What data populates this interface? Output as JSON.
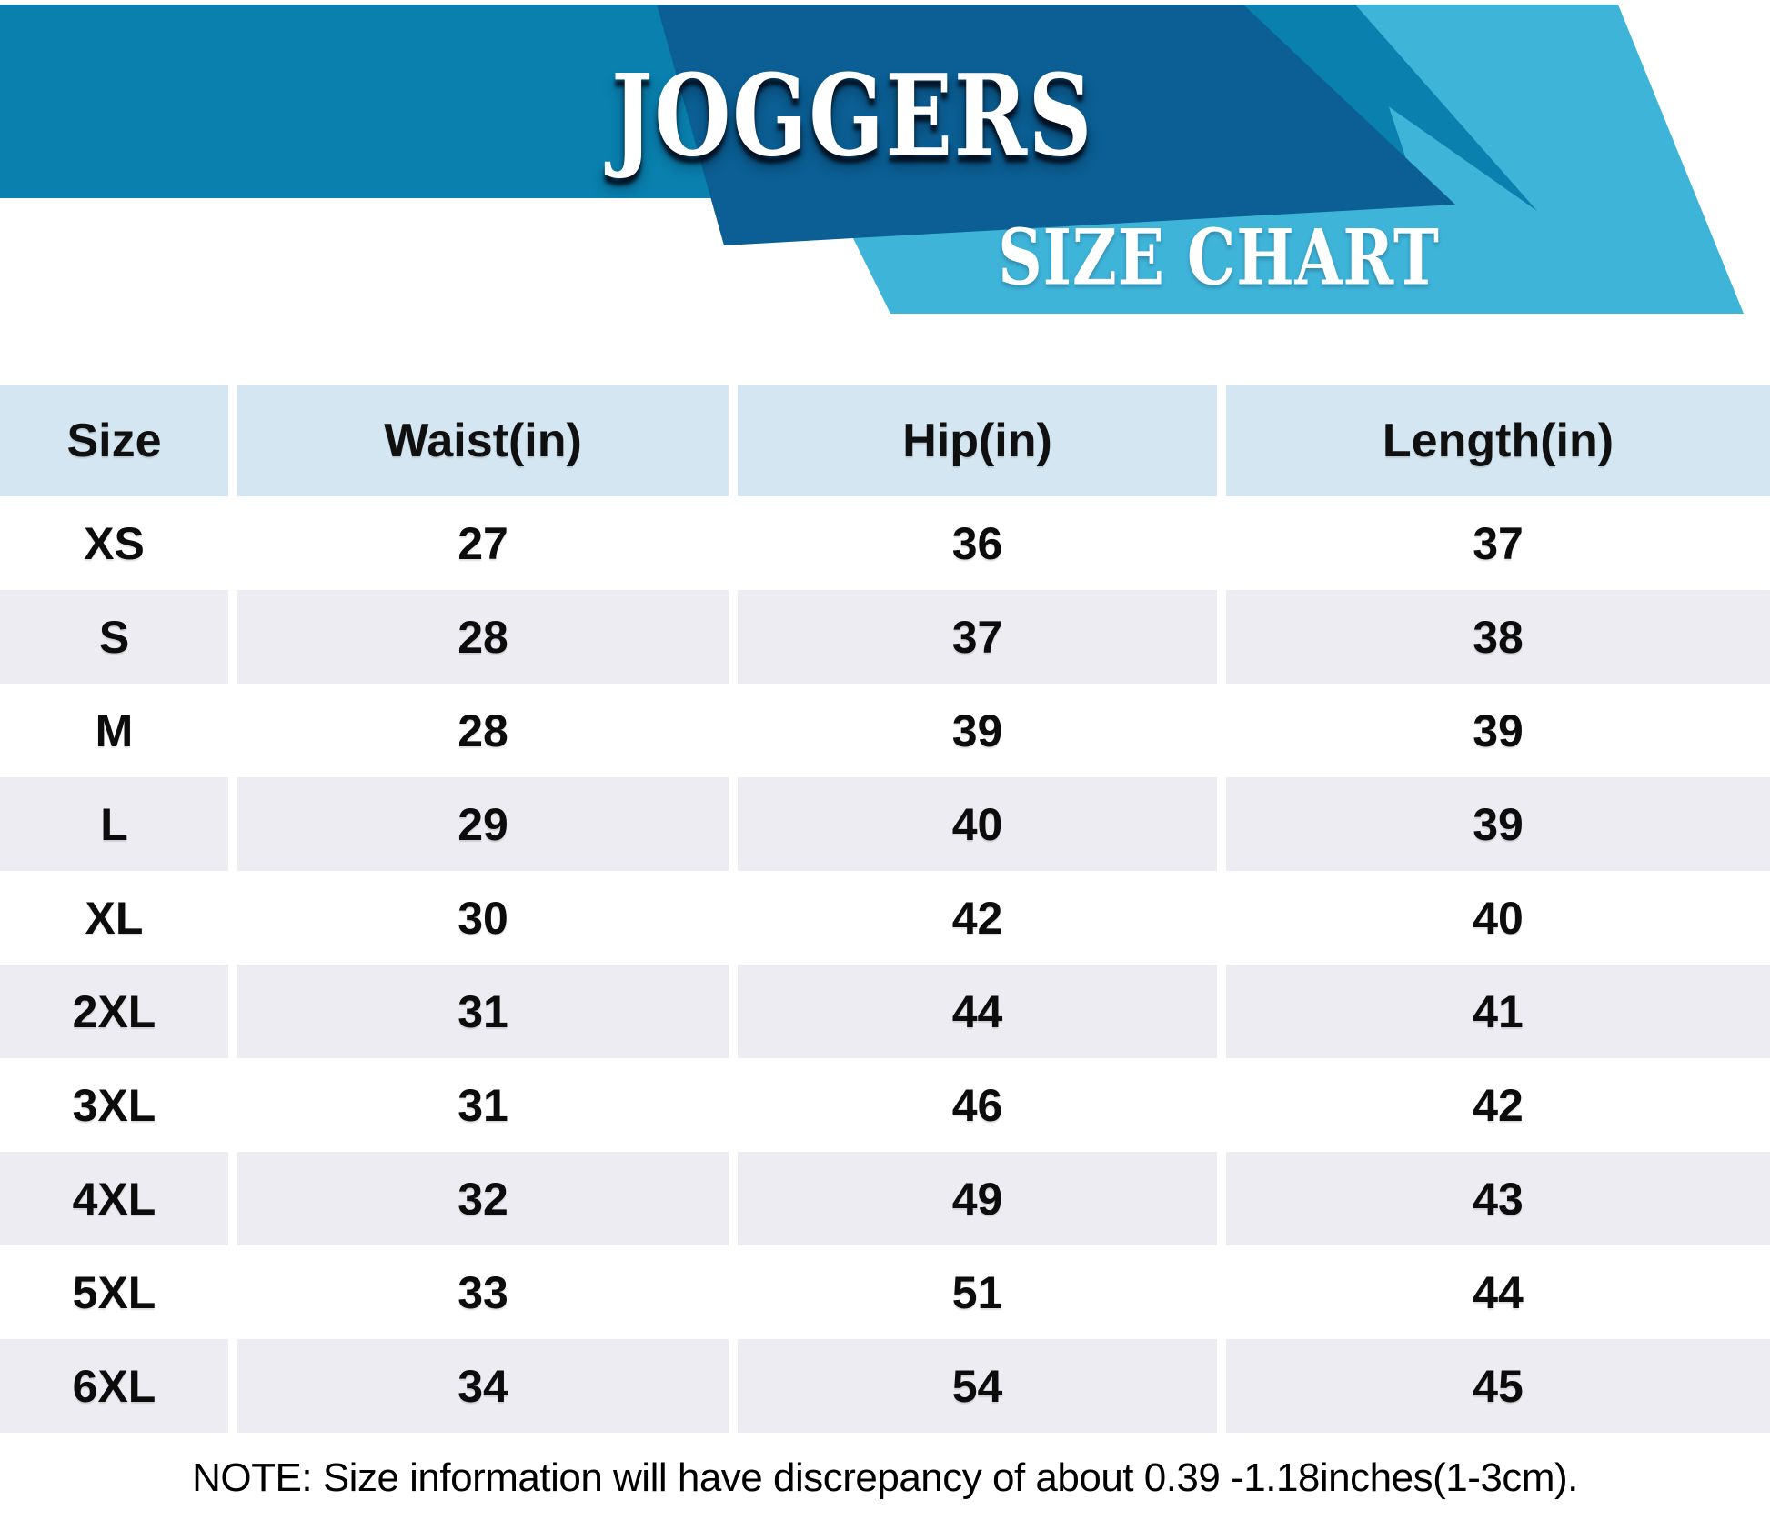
{
  "header": {
    "title": "JOGGERS",
    "subtitle": "SIZE CHART"
  },
  "colors": {
    "medium_blue": "#0980AE",
    "dark_blue": "#0B5F94",
    "light_blue": "#3EB4D9",
    "header_cell": "#D3E6F1",
    "row_alt": "#ECECF2",
    "row_base": "#FFFFFF",
    "text": "#0C0C0C"
  },
  "table": {
    "columns": [
      "Size",
      "Waist(in)",
      "Hip(in)",
      "Length(in)"
    ],
    "rows": [
      {
        "size": "XS",
        "waist": "27",
        "hip": "36",
        "length": "37"
      },
      {
        "size": "S",
        "waist": "28",
        "hip": "37",
        "length": "38"
      },
      {
        "size": "M",
        "waist": "28",
        "hip": "39",
        "length": "39"
      },
      {
        "size": "L",
        "waist": "29",
        "hip": "40",
        "length": "39"
      },
      {
        "size": "XL",
        "waist": "30",
        "hip": "42",
        "length": "40"
      },
      {
        "size": "2XL",
        "waist": "31",
        "hip": "44",
        "length": "41"
      },
      {
        "size": "3XL",
        "waist": "31",
        "hip": "46",
        "length": "42"
      },
      {
        "size": "4XL",
        "waist": "32",
        "hip": "49",
        "length": "43"
      },
      {
        "size": "5XL",
        "waist": "33",
        "hip": "51",
        "length": "44"
      },
      {
        "size": "6XL",
        "waist": "34",
        "hip": "54",
        "length": "45"
      }
    ]
  },
  "note": "NOTE: Size information will have discrepancy of about 0.39 -1.18inches(1-3cm).",
  "chart_data": {
    "type": "table",
    "title": "JOGGERS",
    "subtitle": "SIZE CHART",
    "columns": [
      "Size",
      "Waist(in)",
      "Hip(in)",
      "Length(in)"
    ],
    "rows": [
      [
        "XS",
        27,
        36,
        37
      ],
      [
        "S",
        28,
        37,
        38
      ],
      [
        "M",
        28,
        39,
        39
      ],
      [
        "L",
        29,
        40,
        39
      ],
      [
        "XL",
        30,
        42,
        40
      ],
      [
        "2XL",
        31,
        44,
        41
      ],
      [
        "3XL",
        31,
        46,
        42
      ],
      [
        "4XL",
        32,
        49,
        43
      ],
      [
        "5XL",
        33,
        51,
        44
      ],
      [
        "6XL",
        34,
        54,
        45
      ]
    ],
    "note": "NOTE: Size information will have discrepancy of about 0.39 -1.18inches(1-3cm)."
  }
}
